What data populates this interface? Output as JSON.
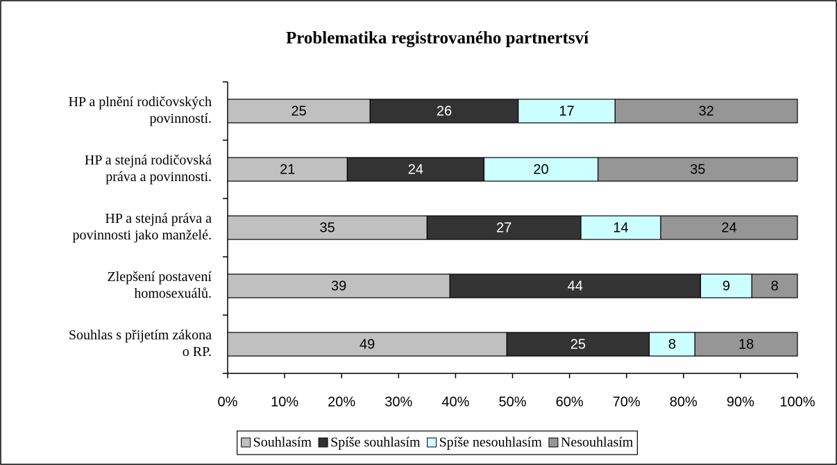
{
  "chart_data": {
    "type": "stacked_barh_percent",
    "title": "Problematika registrovaného partnertsví",
    "categories": [
      "HP a plnění rodičovských\npovinností.",
      "HP a stejná rodičovská\npráva a povinnosti.",
      "HP a stejná práva a\npovinnosti jako manželé.",
      "Zlepšení postavení\nhomosexuálů.",
      "Souhlas s přijetím zákona\no RP."
    ],
    "series": [
      {
        "name": "Souhlasím",
        "color": "#c0c0c0",
        "values": [
          25,
          21,
          35,
          39,
          49
        ]
      },
      {
        "name": "Spíše souhlasím",
        "color": "#333333",
        "values": [
          26,
          24,
          27,
          44,
          25
        ]
      },
      {
        "name": "Spíše nesouhlasím",
        "color": "#ccffff",
        "values": [
          17,
          20,
          14,
          9,
          8
        ]
      },
      {
        "name": "Nesouhlasím",
        "color": "#969696",
        "values": [
          32,
          35,
          24,
          8,
          18
        ]
      }
    ],
    "xlim": [
      0,
      100
    ],
    "xticks": [
      {
        "value": 0,
        "label": "0%"
      },
      {
        "value": 10,
        "label": "10%"
      },
      {
        "value": 20,
        "label": "20%"
      },
      {
        "value": 30,
        "label": "30%"
      },
      {
        "value": 40,
        "label": "40%"
      },
      {
        "value": 50,
        "label": "50%"
      },
      {
        "value": 60,
        "label": "60%"
      },
      {
        "value": 70,
        "label": "70%"
      },
      {
        "value": 80,
        "label": "80%"
      },
      {
        "value": 90,
        "label": "90%"
      },
      {
        "value": 100,
        "label": "100%"
      }
    ],
    "legend": "bottom"
  }
}
